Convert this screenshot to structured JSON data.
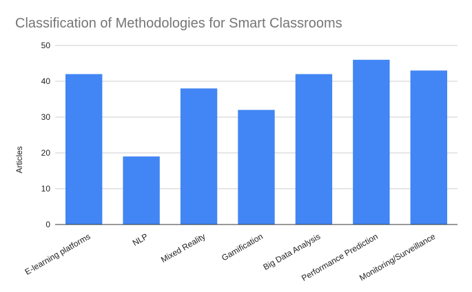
{
  "chart_data": {
    "type": "bar",
    "title": "Classification of Methodologies for Smart Classrooms",
    "xlabel": "",
    "ylabel": "Articles",
    "categories": [
      "E-learning platforms",
      "NLP",
      "Mixed Reality",
      "Gamification",
      "Big Data Analysis",
      "Performance Prediction",
      "Monitoring/Surveillance"
    ],
    "values": [
      42,
      19,
      38,
      32,
      42,
      46,
      43
    ],
    "ylim": [
      0,
      50
    ],
    "yticks": [
      0,
      10,
      20,
      30,
      40,
      50
    ],
    "grid": true,
    "legend": "none",
    "bar_color": "#4285f4"
  }
}
